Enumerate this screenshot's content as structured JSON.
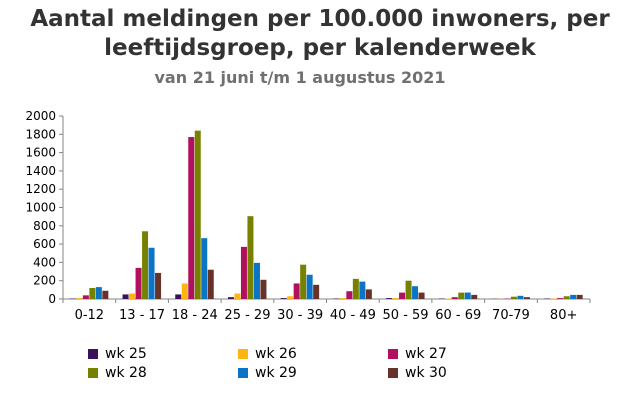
{
  "chart_data": {
    "type": "bar",
    "title_line1": "Aantal meldingen per 100.000 inwoners, per",
    "title_line2": "leeftijdsgroep, per kalenderweek",
    "subtitle": "van 21 juni t/m 1 augustus 2021",
    "categories": [
      "0-12",
      "13 - 17",
      "18 - 24",
      "25 - 29",
      "30 - 39",
      "40 - 49",
      "50 - 59",
      "60 - 69",
      "70-79",
      "80+"
    ],
    "ylim": [
      0,
      2000
    ],
    "yticks": [
      "0",
      "200",
      "400",
      "600",
      "800",
      "1000",
      "1200",
      "1400",
      "1600",
      "1800",
      "2000"
    ],
    "grid": false,
    "legend_position": "bottom",
    "series": [
      {
        "name": "wk 25",
        "color": "#3b1259",
        "values": [
          5,
          50,
          50,
          20,
          10,
          5,
          10,
          5,
          2,
          5
        ]
      },
      {
        "name": "wk 26",
        "color": "#ffb414",
        "values": [
          10,
          60,
          170,
          60,
          30,
          10,
          10,
          5,
          2,
          5
        ]
      },
      {
        "name": "wk 27",
        "color": "#b0105d",
        "values": [
          40,
          340,
          1770,
          570,
          170,
          85,
          70,
          20,
          5,
          10
        ]
      },
      {
        "name": "wk 28",
        "color": "#768100",
        "values": [
          120,
          740,
          1840,
          905,
          375,
          220,
          200,
          70,
          25,
          30
        ]
      },
      {
        "name": "wk 29",
        "color": "#0b74c4",
        "values": [
          130,
          560,
          665,
          395,
          265,
          190,
          140,
          70,
          35,
          45
        ]
      },
      {
        "name": "wk 30",
        "color": "#673227",
        "values": [
          90,
          285,
          320,
          210,
          155,
          105,
          70,
          45,
          20,
          45
        ]
      }
    ]
  }
}
